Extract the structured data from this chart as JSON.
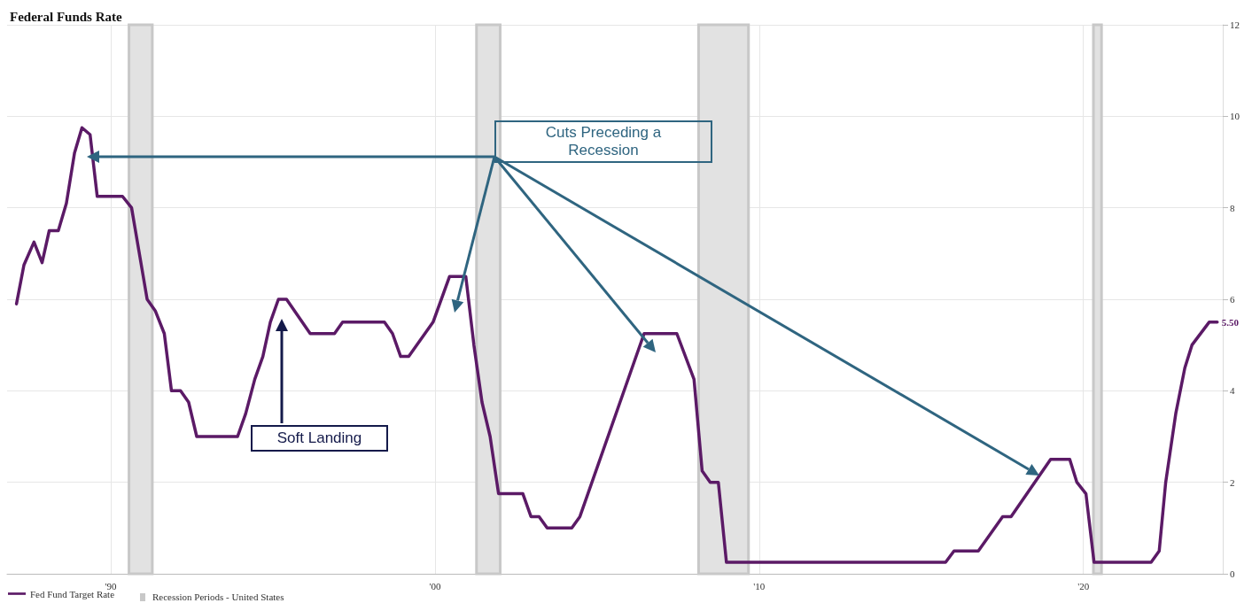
{
  "chart_data": {
    "type": "line",
    "title": "Federal Funds Rate",
    "x": [
      1987.09,
      1987.32,
      1987.63,
      1987.88,
      1988.1,
      1988.38,
      1988.63,
      1988.88,
      1989.11,
      1989.36,
      1989.58,
      1990.36,
      1990.64,
      1991.12,
      1991.37,
      1991.65,
      1991.87,
      1992.15,
      1992.4,
      1992.65,
      1993.91,
      1994.16,
      1994.44,
      1994.69,
      1994.92,
      1995.17,
      1995.42,
      1996.15,
      1996.9,
      1997.15,
      1998.44,
      1998.69,
      1998.94,
      1999.19,
      1999.94,
      2000.45,
      2000.95,
      2001.2,
      2001.45,
      2001.7,
      2001.96,
      2002.71,
      2002.96,
      2003.21,
      2003.46,
      2004.22,
      2004.47,
      2006.45,
      2007.46,
      2007.99,
      2008.24,
      2008.49,
      2008.74,
      2008.99,
      2015.75,
      2016.01,
      2016.76,
      2017.51,
      2017.77,
      2018.99,
      2019.58,
      2019.8,
      2020.08,
      2020.33,
      2022.09,
      2022.34,
      2022.54,
      2022.85,
      2023.13,
      2023.35,
      2023.88,
      2024.13
    ],
    "series": [
      {
        "name": "Fed Fund Target Rate",
        "color": "#5b1a66",
        "values": [
          5.9,
          6.75,
          7.25,
          6.8,
          7.5,
          7.5,
          8.1,
          9.2,
          9.75,
          9.6,
          8.25,
          8.25,
          8.0,
          6.0,
          5.75,
          5.25,
          4.0,
          4.0,
          3.75,
          3.0,
          3.0,
          3.5,
          4.25,
          4.75,
          5.5,
          6.0,
          6.0,
          5.25,
          5.25,
          5.5,
          5.5,
          5.25,
          4.75,
          4.75,
          5.5,
          6.5,
          6.5,
          5.0,
          3.75,
          3.0,
          1.75,
          1.75,
          1.25,
          1.25,
          1.0,
          1.0,
          1.25,
          5.25,
          5.25,
          4.25,
          2.25,
          2.0,
          2.0,
          0.25,
          0.25,
          0.5,
          0.5,
          1.25,
          1.25,
          2.5,
          2.5,
          2.0,
          1.75,
          0.25,
          0.25,
          0.5,
          2.0,
          3.5,
          4.5,
          5.0,
          5.5,
          5.5
        ],
        "value_labels": [
          null,
          null,
          null,
          null,
          null,
          null,
          null,
          null,
          null,
          null,
          null,
          null,
          null,
          null,
          null,
          null,
          null,
          null,
          null,
          null,
          null,
          null,
          null,
          null,
          null,
          null,
          null,
          null,
          null,
          null,
          null,
          null,
          null,
          null,
          null,
          null,
          null,
          null,
          null,
          null,
          null,
          null,
          null,
          null,
          null,
          null,
          null,
          null,
          null,
          null,
          null,
          null,
          null,
          null,
          null,
          null,
          null,
          null,
          null,
          null,
          null,
          null,
          null,
          null,
          null,
          null,
          null,
          null,
          null,
          null,
          null,
          "5.50"
        ]
      }
    ],
    "xlim": [
      1986.8,
      2024.3
    ],
    "xticks": [
      {
        "value": 1990,
        "label": "'90"
      },
      {
        "value": 2000,
        "label": "'00"
      },
      {
        "value": 2010,
        "label": "'10"
      },
      {
        "value": 2020,
        "label": "'20"
      }
    ],
    "ylim": [
      0,
      12
    ],
    "yticks": [
      0,
      2,
      4,
      6,
      8,
      10,
      12
    ],
    "bands": [
      {
        "axis": "x",
        "from": 1990.56,
        "to": 1991.28,
        "label": "Recession Periods - United States",
        "color": "#e2e2e2"
      },
      {
        "axis": "x",
        "from": 2001.28,
        "to": 2002.01,
        "color": "#e2e2e2"
      },
      {
        "axis": "x",
        "from": 2008.13,
        "to": 2009.67,
        "color": "#e2e2e2"
      },
      {
        "axis": "x",
        "from": 2020.31,
        "to": 2020.56,
        "color": "#e2e2e2"
      }
    ],
    "annotations": [
      "Cuts Preceding a Recession",
      "Soft Landing"
    ],
    "grid": true,
    "legend": "bottom left",
    "marker": "none",
    "line_style": "solid"
  }
}
